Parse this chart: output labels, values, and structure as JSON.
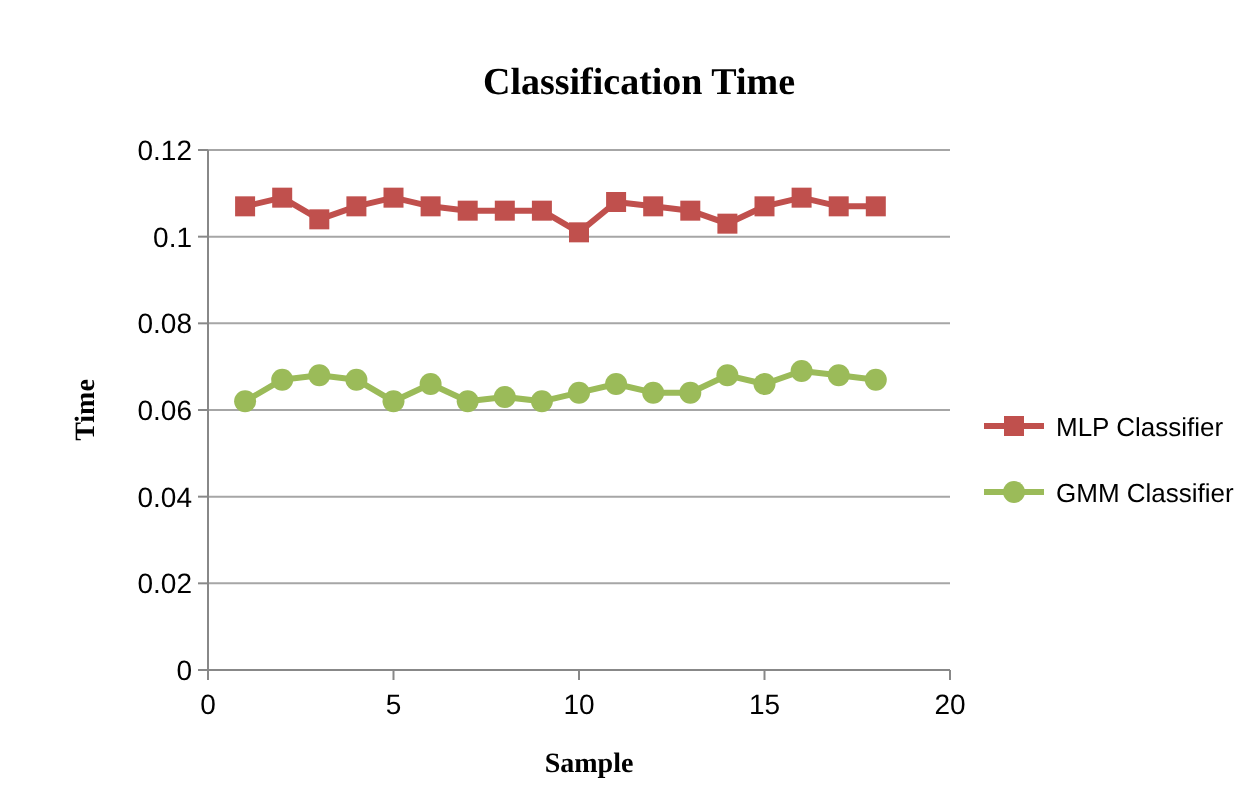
{
  "chart_data": {
    "type": "line",
    "title": "Classification Time",
    "xlabel": "Sample",
    "ylabel": "Time",
    "x": [
      1,
      2,
      3,
      4,
      5,
      6,
      7,
      8,
      9,
      10,
      11,
      12,
      13,
      14,
      15,
      16,
      17,
      18
    ],
    "series": [
      {
        "name": "MLP Classifier",
        "color": "#c0504d",
        "marker": "square",
        "values": [
          0.107,
          0.109,
          0.104,
          0.107,
          0.109,
          0.107,
          0.106,
          0.106,
          0.106,
          0.101,
          0.108,
          0.107,
          0.106,
          0.103,
          0.107,
          0.109,
          0.107,
          0.107
        ]
      },
      {
        "name": "GMM Classifier",
        "color": "#9bbb59",
        "marker": "circle",
        "values": [
          0.062,
          0.067,
          0.068,
          0.067,
          0.062,
          0.066,
          0.062,
          0.063,
          0.062,
          0.064,
          0.066,
          0.064,
          0.064,
          0.068,
          0.066,
          0.069,
          0.068,
          0.067
        ]
      }
    ],
    "xlim": [
      0,
      20
    ],
    "xticks": [
      0,
      5,
      10,
      15,
      20
    ],
    "ylim": [
      0,
      0.12
    ],
    "yticks": [
      0,
      0.02,
      0.04,
      0.06,
      0.08,
      0.1,
      0.12
    ],
    "grid": "y",
    "legend": "right",
    "line_style": "solid"
  }
}
